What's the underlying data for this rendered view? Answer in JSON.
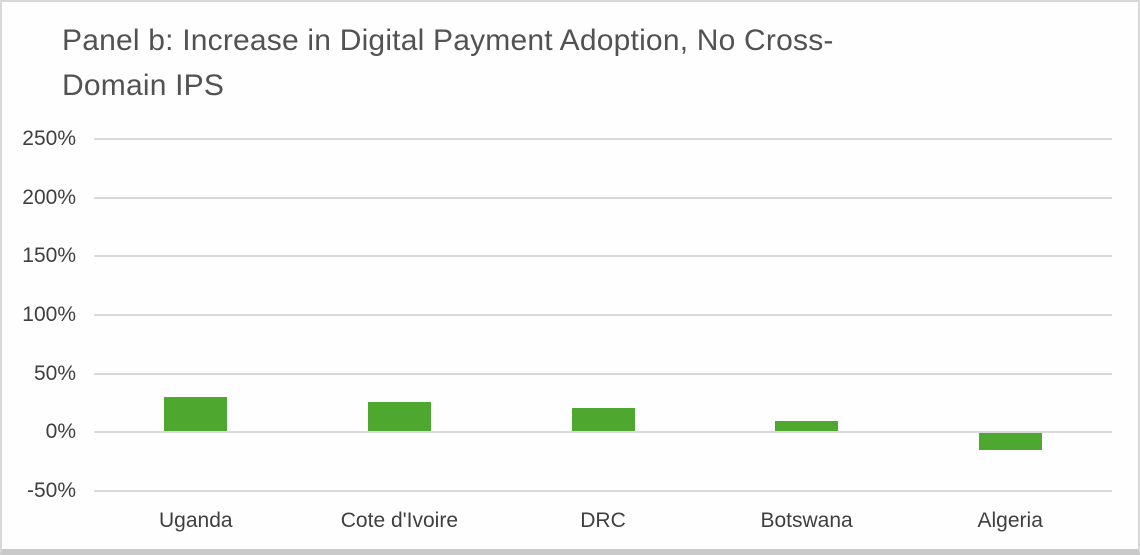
{
  "chart_data": {
    "type": "bar",
    "title": "Panel b: Increase in Digital Payment Adoption, No Cross-Domain IPS",
    "title_lines": [
      "Panel b: Increase in Digital Payment Adoption, No Cross-",
      "Domain IPS"
    ],
    "categories": [
      "Uganda",
      "Cote d'Ivoire",
      "DRC",
      "Botswana",
      "Algeria"
    ],
    "values": [
      30,
      26,
      21,
      10,
      -15
    ],
    "unit": "%",
    "xlabel": "",
    "ylabel": "",
    "ylim": [
      -50,
      250
    ],
    "y_tick_values": [
      250,
      200,
      150,
      100,
      50,
      0,
      -50
    ],
    "y_tick_labels": [
      "250%",
      "200%",
      "150%",
      "100%",
      "50%",
      "0%",
      "-50%"
    ],
    "grid": true,
    "legend": false,
    "bar_color": "#4EA72E",
    "gridline_color": "#D9D9D9",
    "title_color": "#525252",
    "axis_text_color": "#3F3F3F"
  }
}
